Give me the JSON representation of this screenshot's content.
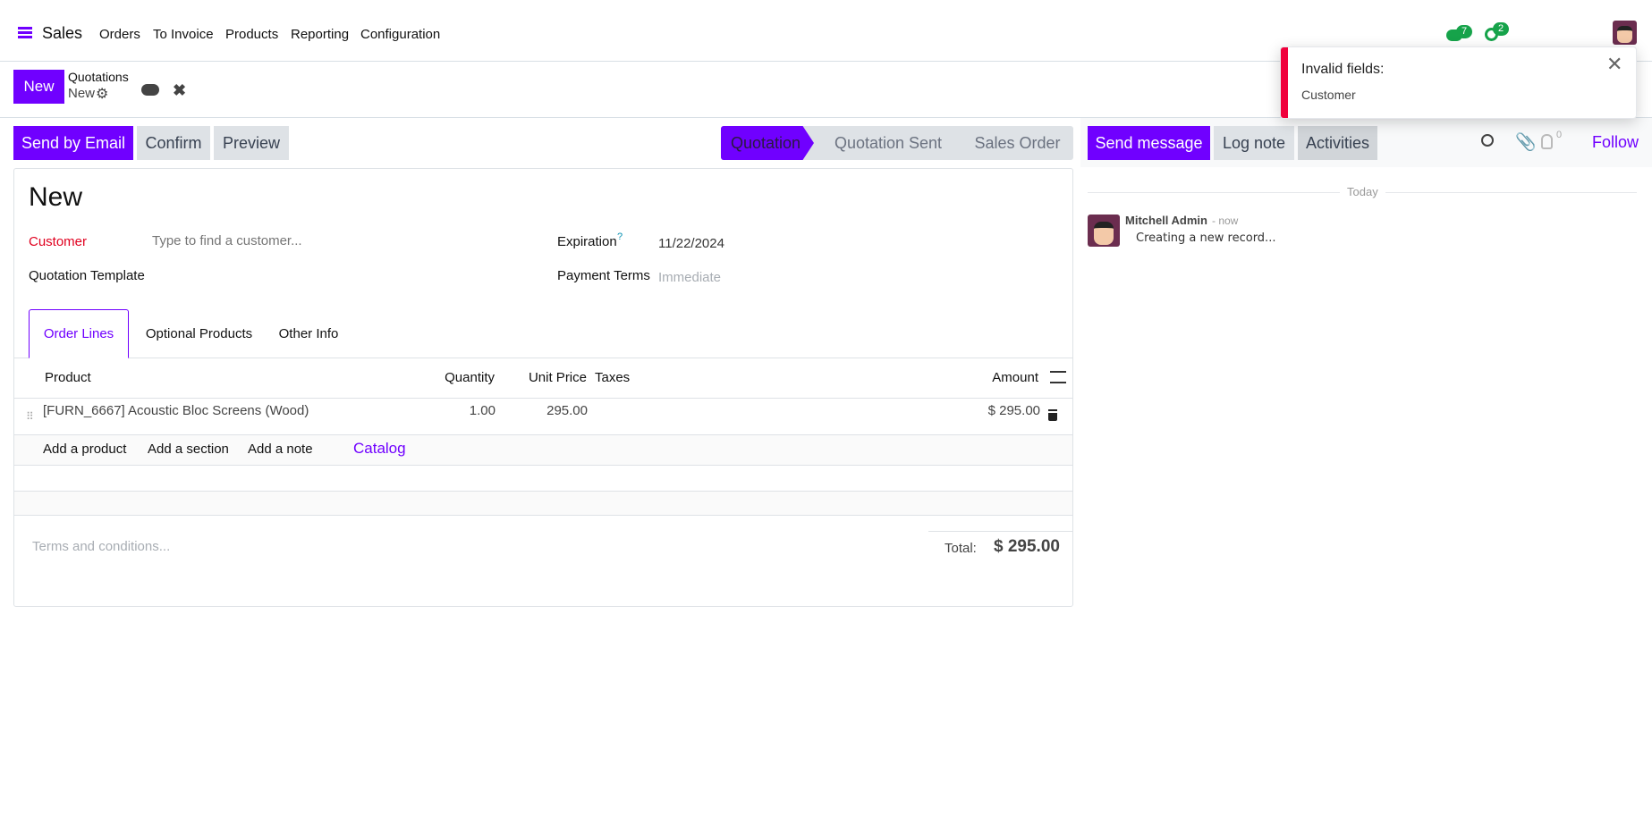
{
  "nav": {
    "app": "Sales",
    "menu": [
      "Orders",
      "To Invoice",
      "Products",
      "Reporting",
      "Configuration"
    ],
    "messages_count": "7",
    "activities_count": "2"
  },
  "control": {
    "new_label": "New",
    "breadcrumb_parent": "Quotations",
    "breadcrumb_current": "New"
  },
  "actions": {
    "send_email": "Send by Email",
    "confirm": "Confirm",
    "preview": "Preview"
  },
  "statusbar": {
    "stages": [
      "Quotation",
      "Quotation Sent",
      "Sales Order"
    ],
    "active": "Quotation"
  },
  "form": {
    "title": "New",
    "customer_label": "Customer",
    "customer_placeholder": "Type to find a customer...",
    "template_label": "Quotation Template",
    "expiration_label": "Expiration",
    "expiration_help": "?",
    "expiration_value": "11/22/2024",
    "payment_label": "Payment Terms",
    "payment_placeholder": "Immediate"
  },
  "tabs": [
    "Order Lines",
    "Optional Products",
    "Other Info"
  ],
  "lines": {
    "columns": {
      "product": "Product",
      "quantity": "Quantity",
      "unit_price": "Unit Price",
      "taxes": "Taxes",
      "amount": "Amount"
    },
    "rows": [
      {
        "product": "[FURN_6667] Acoustic Bloc Screens (Wood)",
        "quantity": "1.00",
        "unit_price": "295.00",
        "taxes": "",
        "amount": "$ 295.00"
      }
    ],
    "add_product": "Add a product",
    "add_section": "Add a section",
    "add_note": "Add a note",
    "catalog": "Catalog"
  },
  "terms_placeholder": "Terms and conditions...",
  "total": {
    "label": "Total:",
    "value": "$ 295.00"
  },
  "chatter": {
    "send_message": "Send message",
    "log_note": "Log note",
    "activities": "Activities",
    "followers_count": "0",
    "follow": "Follow",
    "date_separator": "Today",
    "messages": [
      {
        "author": "Mitchell Admin",
        "time": "- now",
        "body": "Creating a new record..."
      }
    ]
  },
  "toast": {
    "title": "Invalid fields:",
    "body": "Customer"
  },
  "colors": {
    "accent": "#7000ff",
    "danger": "#f0003c",
    "badge": "#16a34a"
  }
}
